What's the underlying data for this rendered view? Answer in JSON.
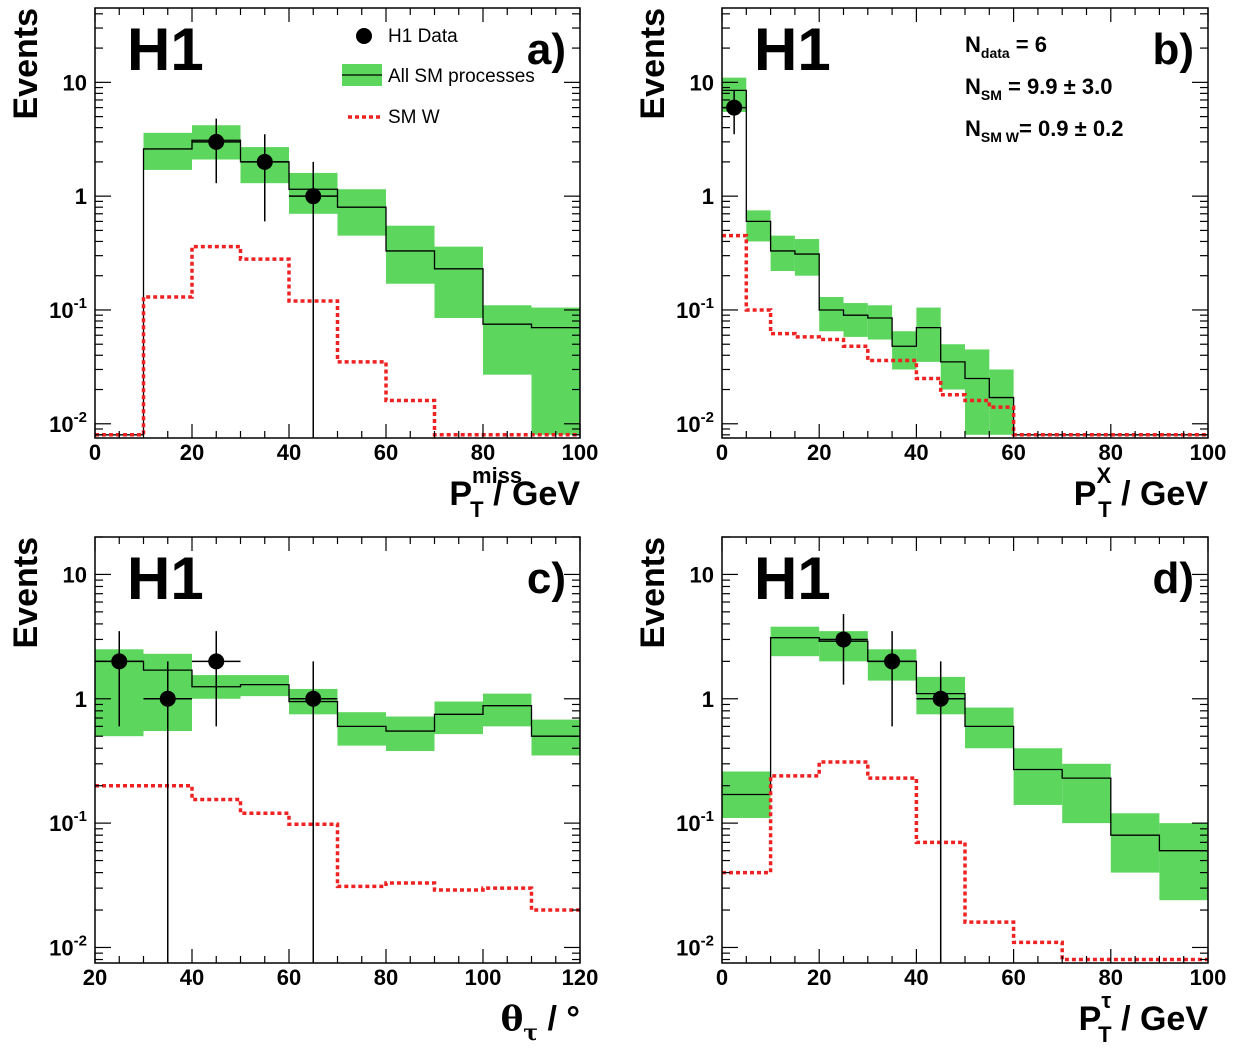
{
  "experiment_label": "H1",
  "legend": {
    "data": "H1 Data",
    "sm_all": "All SM processes",
    "sm_w": "SM W"
  },
  "colors": {
    "band": "#5cd65c",
    "sm_w_line": "#ee2222",
    "data": "#000000"
  },
  "annotation_b": {
    "n_data_main": "N",
    "n_data_sub": "data",
    "n_data_val": " = 6",
    "n_sm_main": "N",
    "n_sm_sub": "SM",
    "n_sm_val": "   = 9.9 ± 3.0",
    "n_smw_main": "N",
    "n_smw_sub": "SM W",
    "n_smw_val": "= 0.9 ± 0.2"
  },
  "chart_data": [
    {
      "type": "histogram",
      "panel": "a)",
      "ylabel": "Events",
      "xlabel": {
        "main": "P",
        "sup": "miss",
        "sub": "T",
        "rest": " / GeV"
      },
      "xlim": [
        0,
        100
      ],
      "ylim": [
        0.0075,
        45
      ],
      "yscale": "log",
      "xticks": [
        "0",
        "20",
        "40",
        "60",
        "80",
        "100"
      ],
      "yticks": [
        {
          "v": 0.01,
          "m": "10",
          "e": "-2"
        },
        {
          "v": 0.1,
          "m": "10",
          "e": "-1"
        },
        {
          "v": 1,
          "m": "1",
          "e": ""
        },
        {
          "v": 10,
          "m": "10",
          "e": ""
        }
      ],
      "bins": [
        0,
        10,
        20,
        30,
        40,
        50,
        60,
        70,
        80,
        90,
        100
      ],
      "sm_total": [
        0.008,
        2.6,
        3.1,
        2.0,
        1.15,
        0.8,
        0.33,
        0.23,
        0.075,
        0.07
      ],
      "sm_band_low": [
        0.008,
        1.7,
        2.1,
        1.3,
        0.7,
        0.45,
        0.17,
        0.085,
        0.027,
        0.008
      ],
      "sm_band_high": [
        0.008,
        3.6,
        4.2,
        2.7,
        1.6,
        1.15,
        0.55,
        0.36,
        0.11,
        0.105
      ],
      "sm_w": [
        0.008,
        0.13,
        0.36,
        0.28,
        0.12,
        0.035,
        0.016,
        0.008,
        0.008,
        0.008
      ],
      "data": [
        {
          "x": 25,
          "y": 3,
          "xerr": 5,
          "ylo": 1.3,
          "yhi": 4.8
        },
        {
          "x": 35,
          "y": 2,
          "xerr": 5,
          "ylo": 0.6,
          "yhi": 3.5
        },
        {
          "x": 45,
          "y": 1,
          "xerr": 5,
          "ylo": 0.0075,
          "yhi": 2.0
        }
      ],
      "show_legend": true
    },
    {
      "type": "histogram",
      "panel": "b)",
      "ylabel": "Events",
      "xlabel": {
        "main": "P",
        "sup": "X",
        "sub": "T",
        "rest": " / GeV"
      },
      "xlim": [
        0,
        100
      ],
      "ylim": [
        0.0075,
        45
      ],
      "yscale": "log",
      "xticks": [
        "0",
        "20",
        "40",
        "60",
        "80",
        "100"
      ],
      "yticks": [
        {
          "v": 0.01,
          "m": "10",
          "e": "-2"
        },
        {
          "v": 0.1,
          "m": "10",
          "e": "-1"
        },
        {
          "v": 1,
          "m": "1",
          "e": ""
        },
        {
          "v": 10,
          "m": "10",
          "e": ""
        }
      ],
      "bins": [
        0,
        5,
        10,
        15,
        20,
        25,
        30,
        35,
        40,
        45,
        50,
        55,
        60,
        65,
        70,
        75,
        80,
        85,
        90,
        95,
        100
      ],
      "sm_total": [
        8.5,
        0.6,
        0.33,
        0.31,
        0.1,
        0.09,
        0.085,
        0.048,
        0.07,
        0.035,
        0.025,
        0.017,
        0.008,
        0.008,
        0.008,
        0.008,
        0.008,
        0.008,
        0.008,
        0.008
      ],
      "sm_band_low": [
        5.5,
        0.4,
        0.22,
        0.2,
        0.065,
        0.058,
        0.055,
        0.03,
        0.035,
        0.02,
        0.008,
        0.008,
        0.008,
        0.008,
        0.008,
        0.008,
        0.008,
        0.008,
        0.008,
        0.008
      ],
      "sm_band_high": [
        11,
        0.75,
        0.45,
        0.42,
        0.13,
        0.115,
        0.11,
        0.065,
        0.105,
        0.05,
        0.045,
        0.03,
        0.008,
        0.008,
        0.008,
        0.008,
        0.008,
        0.008,
        0.008,
        0.008
      ],
      "sm_w": [
        0.45,
        0.1,
        0.062,
        0.058,
        0.055,
        0.048,
        0.036,
        0.036,
        0.025,
        0.018,
        0.016,
        0.014,
        0.008,
        0.008,
        0.008,
        0.008,
        0.008,
        0.008,
        0.008,
        0.008
      ],
      "data": [
        {
          "x": 2.5,
          "y": 6,
          "xerr": 2.5,
          "ylo": 3.5,
          "yhi": 8.5
        }
      ],
      "show_legend": false
    },
    {
      "type": "histogram",
      "panel": "c)",
      "ylabel": "Events",
      "xlabel": {
        "main": "θ",
        "sup": "",
        "sub": "τ",
        "rest": " / °"
      },
      "xlim": [
        20,
        120
      ],
      "ylim": [
        0.0075,
        20
      ],
      "yscale": "log",
      "xticks": [
        "20",
        "40",
        "60",
        "80",
        "100",
        "120"
      ],
      "yticks": [
        {
          "v": 0.01,
          "m": "10",
          "e": "-2"
        },
        {
          "v": 0.1,
          "m": "10",
          "e": "-1"
        },
        {
          "v": 1,
          "m": "1",
          "e": ""
        },
        {
          "v": 10,
          "m": "10",
          "e": ""
        }
      ],
      "bins": [
        20,
        30,
        40,
        50,
        60,
        70,
        80,
        90,
        100,
        110,
        120
      ],
      "sm_total": [
        2.0,
        1.7,
        1.25,
        1.3,
        0.95,
        0.6,
        0.55,
        0.75,
        0.88,
        0.5
      ],
      "sm_band_low": [
        0.5,
        0.55,
        1.0,
        1.05,
        0.75,
        0.42,
        0.38,
        0.52,
        0.6,
        0.35
      ],
      "sm_band_high": [
        2.5,
        2.3,
        1.55,
        1.55,
        1.2,
        0.78,
        0.72,
        0.95,
        1.1,
        0.68
      ],
      "sm_w": [
        0.2,
        0.2,
        0.155,
        0.12,
        0.098,
        0.031,
        0.033,
        0.029,
        0.03,
        0.02
      ],
      "data": [
        {
          "x": 25,
          "y": 2,
          "xerr": 5,
          "ylo": 0.6,
          "yhi": 3.5
        },
        {
          "x": 35,
          "y": 1,
          "xerr": 5,
          "ylo": 0.0075,
          "yhi": 2.0
        },
        {
          "x": 45,
          "y": 2,
          "xerr": 5,
          "ylo": 0.6,
          "yhi": 3.5
        },
        {
          "x": 65,
          "y": 1,
          "xerr": 5,
          "ylo": 0.0075,
          "yhi": 2.0
        }
      ],
      "show_legend": false
    },
    {
      "type": "histogram",
      "panel": "d)",
      "ylabel": "Events",
      "xlabel": {
        "main": "P",
        "sup": "τ",
        "sub": "T",
        "rest": " / GeV"
      },
      "xlim": [
        0,
        100
      ],
      "ylim": [
        0.0075,
        20
      ],
      "yscale": "log",
      "xticks": [
        "0",
        "20",
        "40",
        "60",
        "80",
        "100"
      ],
      "yticks": [
        {
          "v": 0.01,
          "m": "10",
          "e": "-2"
        },
        {
          "v": 0.1,
          "m": "10",
          "e": "-1"
        },
        {
          "v": 1,
          "m": "1",
          "e": ""
        },
        {
          "v": 10,
          "m": "10",
          "e": ""
        }
      ],
      "bins": [
        0,
        10,
        20,
        30,
        40,
        50,
        60,
        70,
        80,
        90,
        100
      ],
      "sm_total": [
        0.17,
        3.1,
        2.9,
        2.0,
        1.1,
        0.6,
        0.27,
        0.23,
        0.08,
        0.06
      ],
      "sm_band_low": [
        0.11,
        2.2,
        2.0,
        1.4,
        0.75,
        0.4,
        0.14,
        0.1,
        0.04,
        0.024
      ],
      "sm_band_high": [
        0.26,
        3.8,
        3.5,
        2.5,
        1.5,
        0.85,
        0.4,
        0.3,
        0.12,
        0.1
      ],
      "sm_w": [
        0.04,
        0.24,
        0.31,
        0.23,
        0.07,
        0.016,
        0.011,
        0.008,
        0.008,
        0.008
      ],
      "data": [
        {
          "x": 25,
          "y": 3,
          "xerr": 5,
          "ylo": 1.3,
          "yhi": 4.8
        },
        {
          "x": 35,
          "y": 2,
          "xerr": 5,
          "ylo": 0.6,
          "yhi": 3.5
        },
        {
          "x": 45,
          "y": 1,
          "xerr": 5,
          "ylo": 0.0075,
          "yhi": 2.0
        }
      ],
      "show_legend": false
    }
  ]
}
